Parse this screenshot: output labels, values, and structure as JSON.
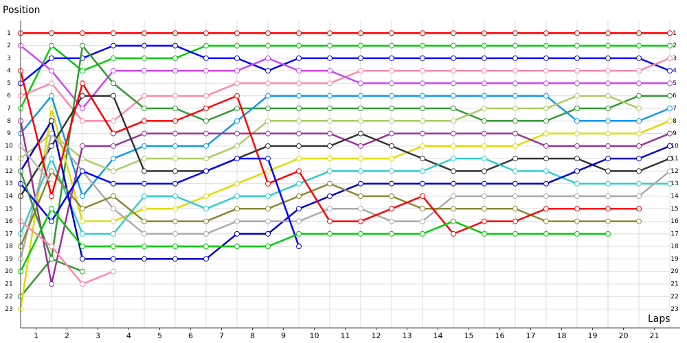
{
  "chart_data": {
    "type": "line",
    "y_label": "Position",
    "x_label": "Laps",
    "x": [
      0,
      1,
      2,
      3,
      4,
      5,
      6,
      7,
      8,
      9,
      10,
      11,
      12,
      13,
      14,
      15,
      16,
      17,
      18,
      19,
      20,
      21
    ],
    "xlim": [
      0,
      21
    ],
    "xticks": [
      {
        "value": 0.5,
        "label": "1"
      },
      {
        "value": 1.5,
        "label": "2"
      },
      {
        "value": 2.5,
        "label": "3"
      },
      {
        "value": 3.5,
        "label": "4"
      },
      {
        "value": 4.5,
        "label": "5"
      },
      {
        "value": 5.5,
        "label": "6"
      },
      {
        "value": 6.5,
        "label": "7"
      },
      {
        "value": 7.5,
        "label": "8"
      },
      {
        "value": 8.5,
        "label": "9"
      },
      {
        "value": 9.5,
        "label": "10"
      },
      {
        "value": 10.5,
        "label": "11"
      },
      {
        "value": 11.5,
        "label": "12"
      },
      {
        "value": 12.5,
        "label": "13"
      },
      {
        "value": 13.5,
        "label": "14"
      },
      {
        "value": 14.5,
        "label": "15"
      },
      {
        "value": 15.5,
        "label": "16"
      },
      {
        "value": 16.5,
        "label": "17"
      },
      {
        "value": 17.5,
        "label": "18"
      },
      {
        "value": 18.5,
        "label": "19"
      },
      {
        "value": 19.5,
        "label": "20"
      },
      {
        "value": 20.5,
        "label": "21"
      }
    ],
    "ylim": [
      24.5,
      0
    ],
    "yticks": [
      1,
      2,
      3,
      4,
      5,
      6,
      7,
      8,
      9,
      10,
      11,
      12,
      13,
      14,
      15,
      16,
      17,
      18,
      19,
      20,
      21,
      22,
      23
    ],
    "grid": true,
    "series": [
      {
        "color": "#ff0000",
        "values": [
          1,
          1,
          1,
          1,
          1,
          1,
          1,
          1,
          1,
          1,
          1,
          1,
          1,
          1,
          1,
          1,
          1,
          1,
          1,
          1,
          1,
          1
        ]
      },
      {
        "color": "#00cc00",
        "values": [
          7,
          2,
          4,
          3,
          3,
          3,
          2,
          2,
          2,
          2,
          2,
          2,
          2,
          2,
          2,
          2,
          2,
          2,
          2,
          2,
          2,
          2
        ]
      },
      {
        "color": "#0000ff",
        "values": [
          5,
          3,
          3,
          2,
          2,
          2,
          3,
          3,
          4,
          3,
          3,
          3,
          3,
          3,
          3,
          3,
          3,
          3,
          3,
          3,
          3,
          4
        ]
      },
      {
        "color": "#ff88aa",
        "values": [
          6,
          5,
          8,
          8,
          6,
          6,
          6,
          5,
          5,
          5,
          5,
          4,
          4,
          4,
          4,
          4,
          4,
          4,
          4,
          4,
          4,
          3
        ]
      },
      {
        "color": "#cc44ff",
        "values": [
          2,
          4,
          7,
          4,
          4,
          4,
          4,
          4,
          3,
          4,
          4,
          5,
          5,
          5,
          5,
          5,
          5,
          5,
          5,
          5,
          5,
          5
        ]
      },
      {
        "color": "#339933",
        "values": [
          22,
          19,
          2,
          5,
          7,
          7,
          8,
          7,
          7,
          7,
          7,
          7,
          7,
          7,
          7,
          8,
          8,
          8,
          7,
          7,
          6,
          6
        ]
      },
      {
        "color": "#1199ee",
        "values": [
          9,
          6,
          14,
          11,
          10,
          10,
          10,
          8,
          6,
          6,
          6,
          6,
          6,
          6,
          6,
          6,
          6,
          6,
          8,
          8,
          8,
          7
        ]
      },
      {
        "color": "#aacc66",
        "values": [
          11,
          9,
          11,
          12,
          11,
          11,
          11,
          10,
          8,
          8,
          8,
          8,
          8,
          8,
          8,
          7,
          7,
          7,
          6,
          6,
          7,
          null
        ]
      },
      {
        "color": "#dddd00",
        "values": [
          23,
          7,
          16,
          16,
          15,
          15,
          14,
          13,
          12,
          11,
          11,
          11,
          11,
          10,
          10,
          10,
          10,
          9,
          9,
          9,
          9,
          8
        ]
      },
      {
        "color": "#993399",
        "values": [
          8,
          21,
          10,
          10,
          9,
          9,
          9,
          9,
          9,
          9,
          9,
          10,
          9,
          9,
          9,
          9,
          9,
          10,
          10,
          10,
          10,
          9
        ]
      },
      {
        "color": "#333333",
        "values": [
          14,
          10,
          6,
          6,
          12,
          12,
          12,
          11,
          10,
          10,
          10,
          9,
          10,
          11,
          12,
          12,
          11,
          11,
          11,
          12,
          12,
          11
        ]
      },
      {
        "color": "#33cccc",
        "values": [
          17,
          11,
          17,
          17,
          14,
          14,
          15,
          14,
          14,
          13,
          12,
          12,
          12,
          12,
          11,
          11,
          12,
          12,
          13,
          13,
          13,
          13
        ]
      },
      {
        "color": "#0000cc",
        "values": [
          12,
          8,
          19,
          19,
          19,
          19,
          19,
          17,
          17,
          15,
          14,
          13,
          13,
          13,
          13,
          13,
          13,
          13,
          12,
          11,
          11,
          10
        ]
      },
      {
        "color": "#aaaaaa",
        "values": [
          19,
          9,
          12,
          15,
          17,
          17,
          17,
          16,
          16,
          16,
          15,
          15,
          16,
          16,
          14,
          14,
          14,
          14,
          14,
          14,
          14,
          12
        ]
      },
      {
        "color": "#888833",
        "values": [
          18,
          12,
          15,
          14,
          16,
          16,
          16,
          15,
          15,
          14,
          13,
          14,
          14,
          15,
          15,
          15,
          15,
          16,
          16,
          16,
          16,
          null
        ]
      },
      {
        "color": "#ff0000",
        "values": [
          4,
          14,
          5,
          9,
          8,
          8,
          7,
          6,
          13,
          12,
          16,
          16,
          15,
          14,
          17,
          16,
          16,
          15,
          15,
          15,
          15,
          null
        ]
      },
      {
        "color": "#0000ff",
        "values": [
          13,
          16,
          12,
          13,
          13,
          13,
          12,
          11,
          11,
          18,
          null,
          null,
          null,
          null,
          null,
          null,
          null,
          null,
          null,
          null,
          null,
          null
        ]
      },
      {
        "color": "#00cc00",
        "values": [
          20,
          15,
          18,
          18,
          18,
          18,
          18,
          18,
          18,
          17,
          17,
          17,
          17,
          17,
          16,
          17,
          17,
          17,
          17,
          17,
          null,
          null
        ]
      },
      {
        "color": "#339933",
        "values": [
          12,
          19,
          20,
          null,
          null,
          null,
          null,
          null,
          null,
          null,
          null,
          null,
          null,
          null,
          null,
          null,
          null,
          null,
          null,
          null,
          null,
          null
        ]
      },
      {
        "color": "#ff88aa",
        "values": [
          16,
          18,
          21,
          20,
          null,
          null,
          null,
          null,
          null,
          null,
          null,
          null,
          null,
          null,
          null,
          null,
          null,
          null,
          null,
          null,
          null,
          null
        ]
      },
      {
        "color": "#bbbbbb",
        "values": [
          10,
          13,
          null,
          null,
          null,
          null,
          null,
          null,
          null,
          null,
          null,
          null,
          null,
          null,
          null,
          null,
          null,
          null,
          null,
          null,
          null,
          null
        ]
      }
    ]
  }
}
